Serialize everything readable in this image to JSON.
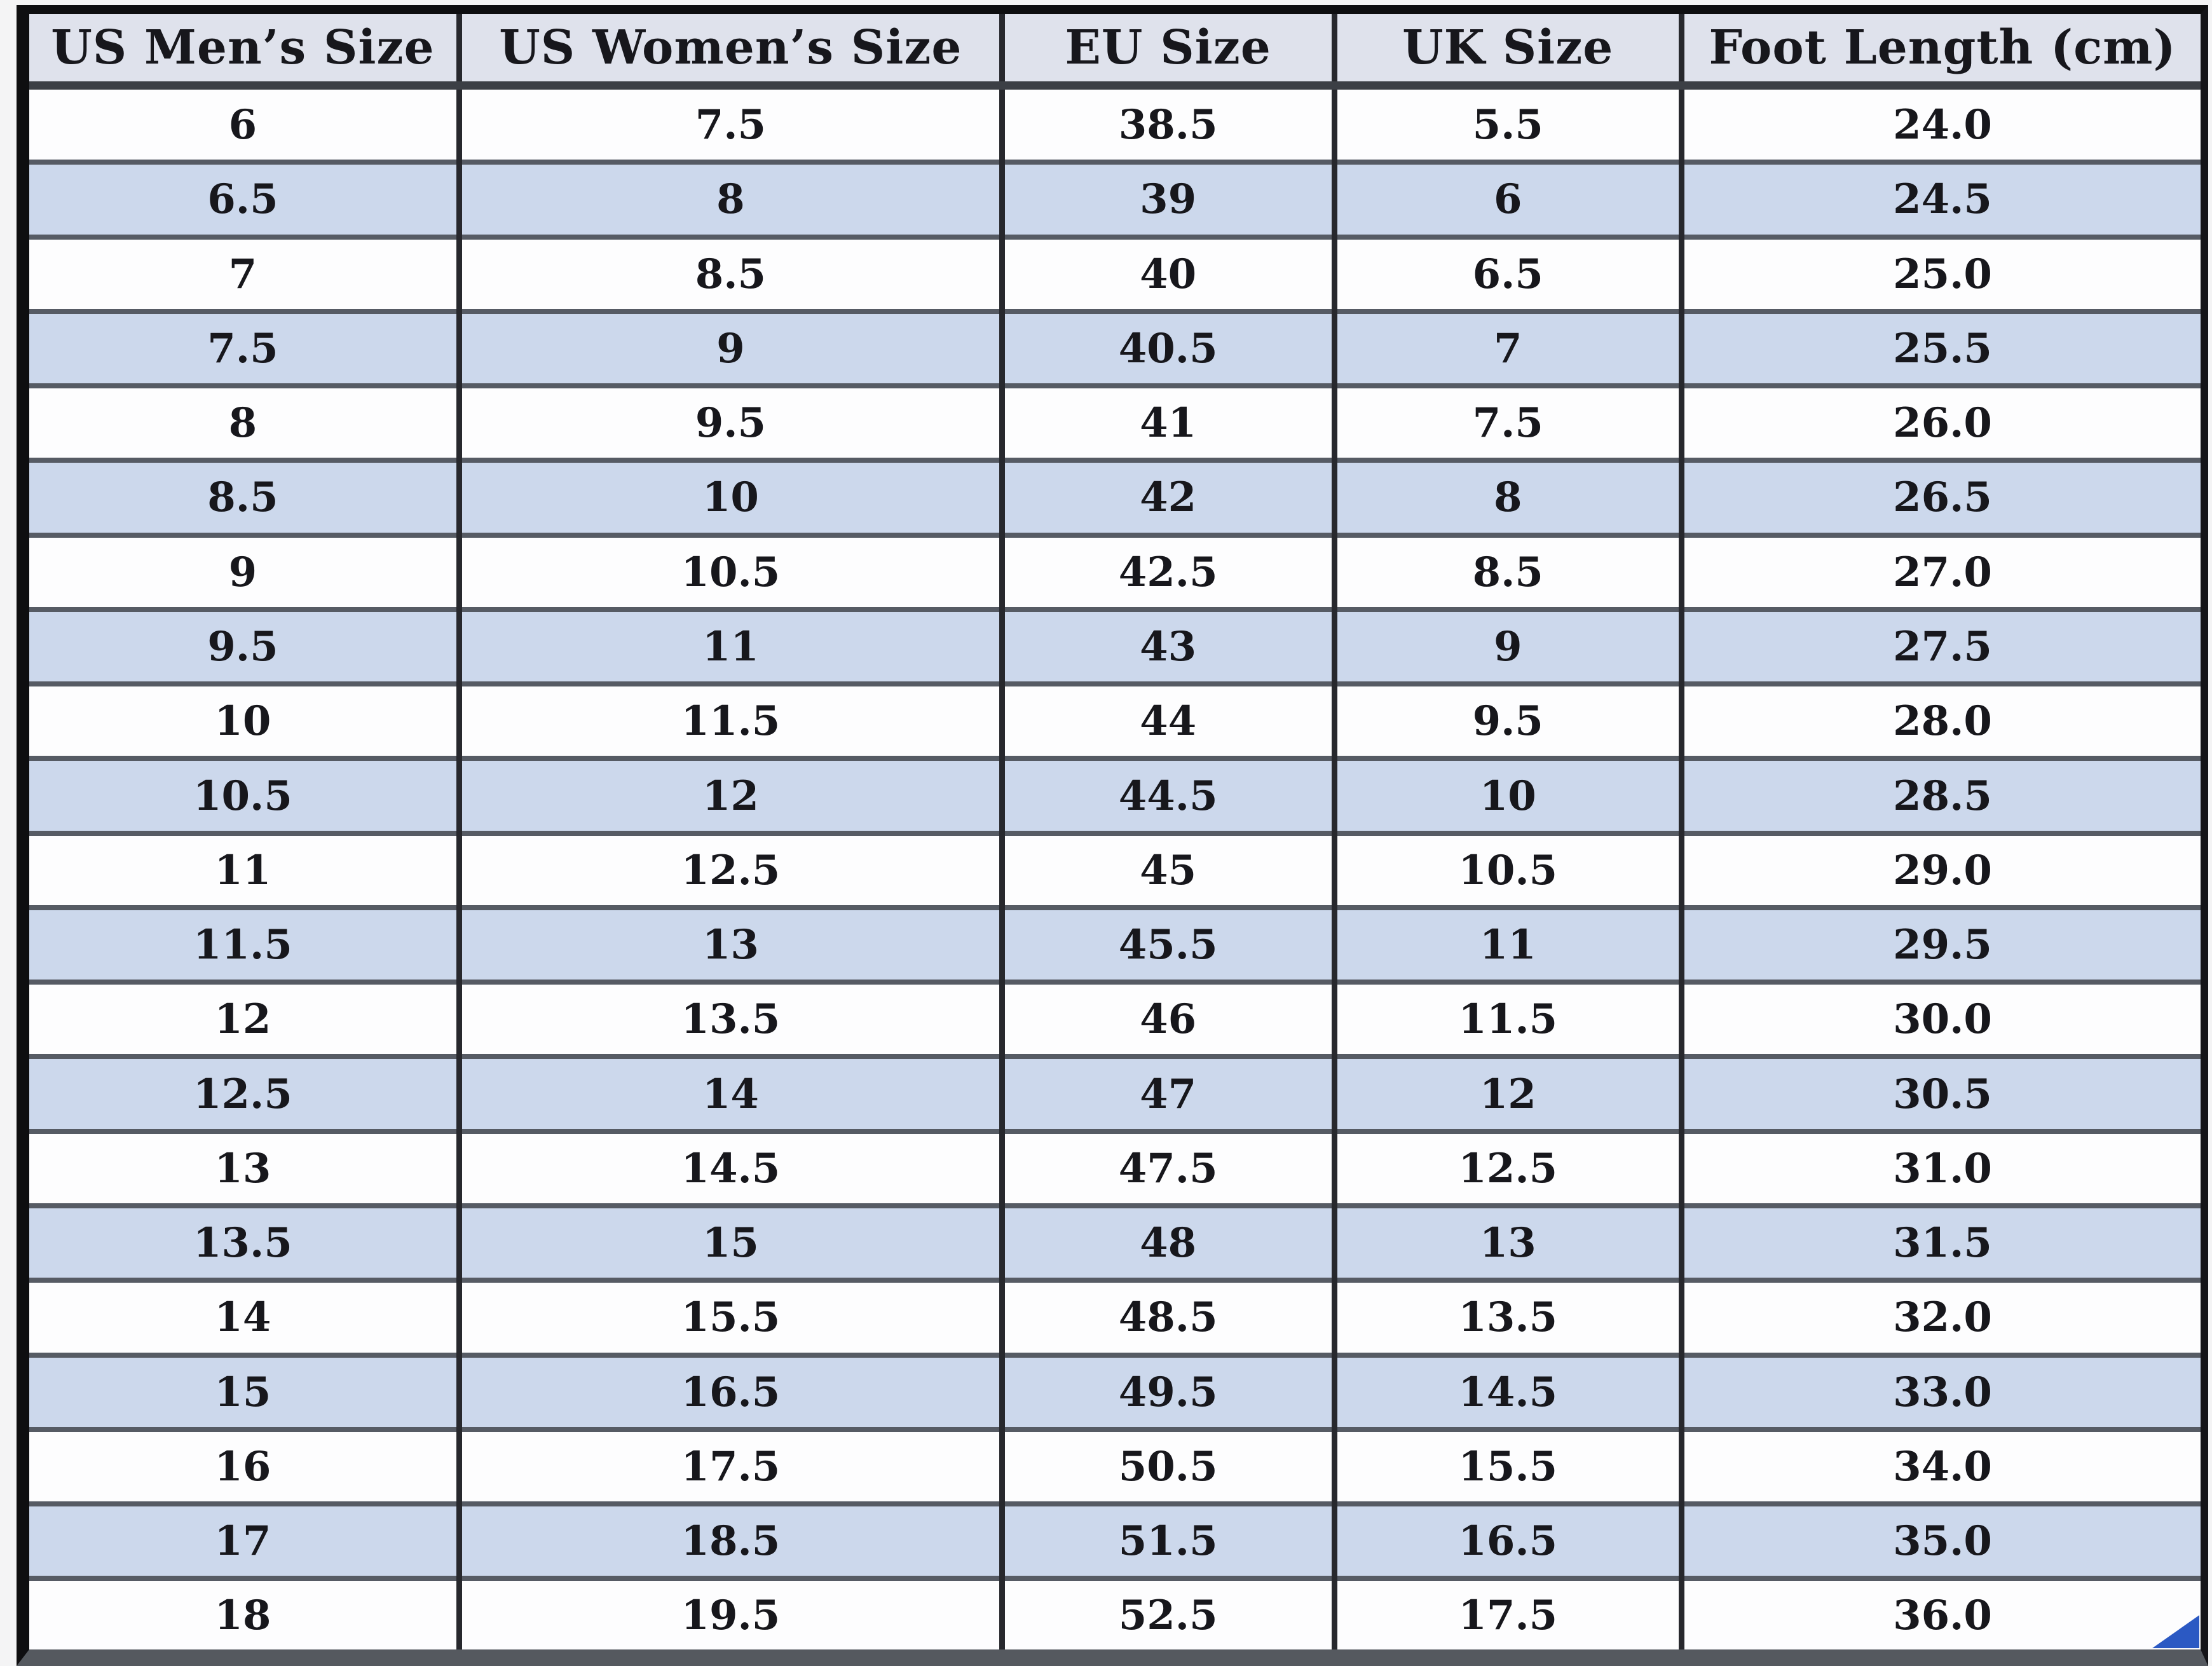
{
  "table": {
    "headers": [
      "US Men’s Size",
      "US Women’s Size",
      "EU Size",
      "UK Size",
      "Foot Length (cm)"
    ],
    "rows": [
      [
        "6",
        "7.5",
        "38.5",
        "5.5",
        "24.0"
      ],
      [
        "6.5",
        "8",
        "39",
        "6",
        "24.5"
      ],
      [
        "7",
        "8.5",
        "40",
        "6.5",
        "25.0"
      ],
      [
        "7.5",
        "9",
        "40.5",
        "7",
        "25.5"
      ],
      [
        "8",
        "9.5",
        "41",
        "7.5",
        "26.0"
      ],
      [
        "8.5",
        "10",
        "42",
        "8",
        "26.5"
      ],
      [
        "9",
        "10.5",
        "42.5",
        "8.5",
        "27.0"
      ],
      [
        "9.5",
        "11",
        "43",
        "9",
        "27.5"
      ],
      [
        "10",
        "11.5",
        "44",
        "9.5",
        "28.0"
      ],
      [
        "10.5",
        "12",
        "44.5",
        "10",
        "28.5"
      ],
      [
        "11",
        "12.5",
        "45",
        "10.5",
        "29.0"
      ],
      [
        "11.5",
        "13",
        "45.5",
        "11",
        "29.5"
      ],
      [
        "12",
        "13.5",
        "46",
        "11.5",
        "30.0"
      ],
      [
        "12.5",
        "14",
        "47",
        "12",
        "30.5"
      ],
      [
        "13",
        "14.5",
        "47.5",
        "12.5",
        "31.0"
      ],
      [
        "13.5",
        "15",
        "48",
        "13",
        "31.5"
      ],
      [
        "14",
        "15.5",
        "48.5",
        "13.5",
        "32.0"
      ],
      [
        "15",
        "16.5",
        "49.5",
        "14.5",
        "33.0"
      ],
      [
        "16",
        "17.5",
        "50.5",
        "15.5",
        "34.0"
      ],
      [
        "17",
        "18.5",
        "51.5",
        "16.5",
        "35.0"
      ],
      [
        "18",
        "19.5",
        "52.5",
        "17.5",
        "36.0"
      ]
    ],
    "column_widths_percent": [
      19.8,
      25.0,
      15.3,
      16.0,
      23.9
    ]
  },
  "colors": {
    "header_bg": "#dfe2ec",
    "stripe_row_bg": "#ccd8ec",
    "plain_row_bg": "#fdfdfe",
    "outer_border": "#0e0e10",
    "column_separator": "#27282d",
    "row_separator": "#565b64",
    "text": "#17171c",
    "corner_artifact_blue": "#2b59c3"
  }
}
